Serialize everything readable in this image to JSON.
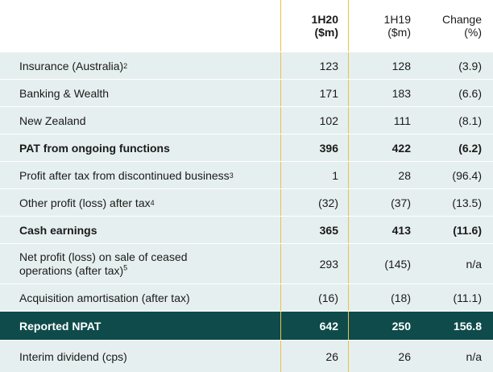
{
  "header": {
    "col1": {
      "top": "1H20",
      "bottom": "($m)"
    },
    "col2": {
      "top": "1H19",
      "bottom": "($m)"
    },
    "col3": {
      "top": "Change",
      "bottom": "(%)"
    }
  },
  "rows": [
    {
      "label": "Insurance  (Australia)",
      "sup": "2",
      "h20": "123",
      "h19": "128",
      "chg": "(3.9)",
      "bold": false
    },
    {
      "label": "Banking  & Wealth",
      "sup": "",
      "h20": "171",
      "h19": "183",
      "chg": "(6.6)",
      "bold": false
    },
    {
      "label": "New Zealand",
      "sup": "",
      "h20": "102",
      "h19": "111",
      "chg": "(8.1)",
      "bold": false
    },
    {
      "label": "PAT from ongoing functions",
      "sup": "",
      "h20": "396",
      "h19": "422",
      "chg": "(6.2)",
      "bold": true
    },
    {
      "label": "Profit after tax from discontinued  business",
      "sup": "3",
      "h20": "1",
      "h19": "28",
      "chg": "(96.4)",
      "bold": false
    },
    {
      "label": "Other profit (loss) after tax",
      "sup": "4",
      "h20": "(32)",
      "h19": "(37)",
      "chg": "(13.5)",
      "bold": false
    },
    {
      "label": "Cash earnings",
      "sup": "",
      "h20": "365",
      "h19": "413",
      "chg": "(11.6)",
      "bold": true
    },
    {
      "label_line1": "Net profit (loss) on sale of ceased",
      "label_line2": "operations (after tax)",
      "sup": "5",
      "h20": "293",
      "h19": "(145)",
      "chg": "n/a",
      "bold": false
    },
    {
      "label": "Acquisition amortisation (after tax)",
      "sup": "",
      "h20": "(16)",
      "h19": "(18)",
      "chg": "(11.1)",
      "bold": false
    },
    {
      "label": "Reported NPAT",
      "sup": "",
      "h20": "642",
      "h19": "250",
      "chg": "156.8",
      "bold": true
    },
    {
      "label": "Interim dividend  (cps)",
      "sup": "",
      "h20": "26",
      "h19": "26",
      "chg": "n/a",
      "bold": false
    }
  ],
  "colors": {
    "band": "#e6efef",
    "highlight": "#0f4b4b",
    "divider": "#e8c34a"
  }
}
